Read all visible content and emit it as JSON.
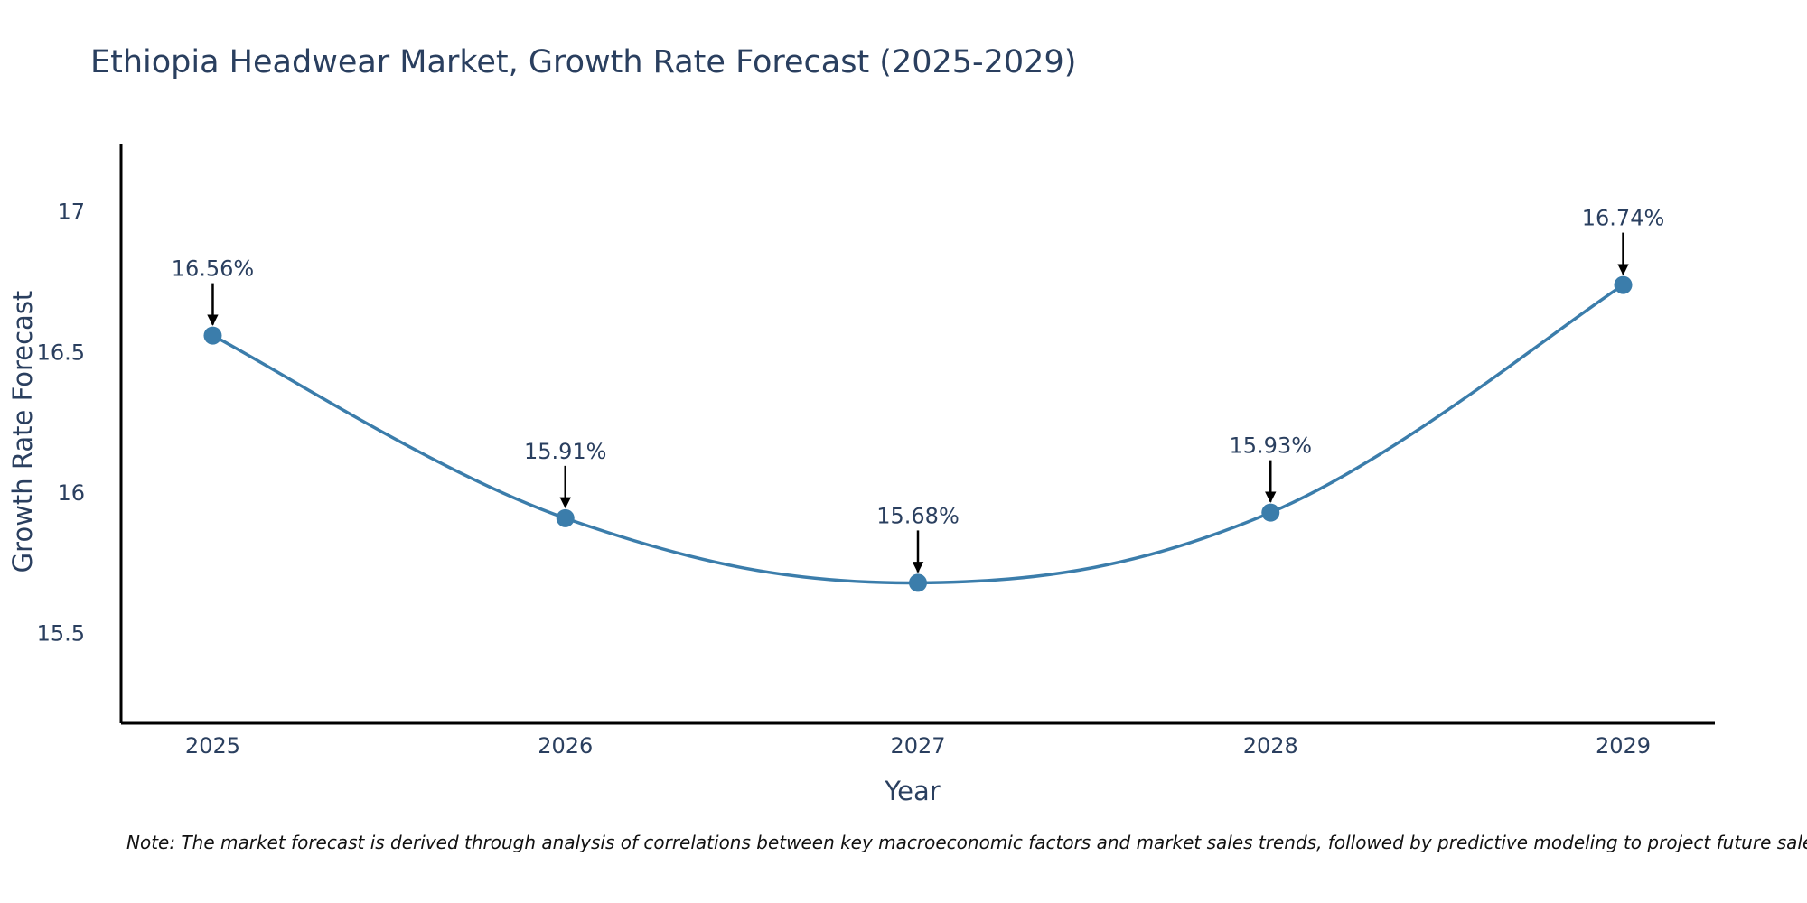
{
  "chart_data": {
    "type": "line",
    "title": "Ethiopia Headwear Market, Growth Rate Forecast (2025-2029)",
    "xlabel": "Year",
    "ylabel": "Growth Rate Forecast",
    "categories": [
      "2025",
      "2026",
      "2027",
      "2028",
      "2029"
    ],
    "x": [
      2025,
      2026,
      2027,
      2028,
      2029
    ],
    "series": [
      {
        "name": "Growth Rate Forecast",
        "values": [
          16.56,
          15.91,
          15.68,
          15.93,
          16.74
        ]
      }
    ],
    "data_labels": [
      "16.56%",
      "15.91%",
      "15.68%",
      "15.93%",
      "16.74%"
    ],
    "yticks": [
      15.5,
      16,
      16.5,
      17
    ],
    "ytick_labels": [
      "15.5",
      "16",
      "16.5",
      "17"
    ],
    "ylim": [
      15.18,
      17.24
    ],
    "xlim": [
      2024.74,
      2029.26
    ],
    "grid": false,
    "line_color": "#3b7dab",
    "note": "Note: The market forecast is derived through analysis of correlations between key macroeconomic factors and market sales trends, followed by predictive modeling to project future sales."
  }
}
